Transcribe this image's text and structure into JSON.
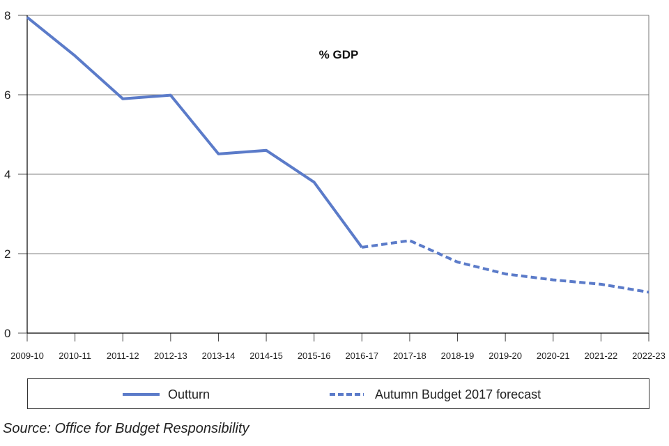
{
  "chart_data": {
    "type": "line",
    "title": "% GDP",
    "xlabel": "",
    "ylabel": "",
    "categories": [
      "2009-10",
      "2010-11",
      "2011-12",
      "2012-13",
      "2013-14",
      "2014-15",
      "2015-16",
      "2016-17",
      "2017-18",
      "2018-19",
      "2019-20",
      "2020-21",
      "2021-22",
      "2022-23"
    ],
    "ylim": [
      0,
      8
    ],
    "yticks": [
      0,
      2,
      4,
      6,
      8
    ],
    "grid": true,
    "series": [
      {
        "name": "Outturn",
        "style": "solid",
        "color": "#5b7bc9",
        "values": [
          7.95,
          6.98,
          5.9,
          5.99,
          4.51,
          4.6,
          3.8,
          2.16,
          null,
          null,
          null,
          null,
          null,
          null
        ]
      },
      {
        "name": "Autumn Budget 2017 forecast",
        "style": "dashed",
        "color": "#5b7bc9",
        "values": [
          null,
          null,
          null,
          null,
          null,
          null,
          null,
          2.16,
          2.33,
          1.79,
          1.49,
          1.34,
          1.23,
          1.03
        ]
      }
    ],
    "legend_position": "bottom"
  },
  "source": "Source: Office for Budget Responsibility"
}
